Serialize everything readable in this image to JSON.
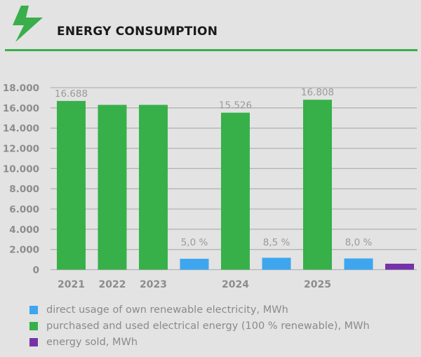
{
  "header": {
    "title": "ENERGY CONSUMPTION",
    "icon": "lightning-bolt-icon"
  },
  "colors": {
    "blue": "#3ea6ee",
    "green": "#37b04a",
    "purple": "#7433a8",
    "accent": "#3aae4a"
  },
  "chart_data": {
    "type": "bar",
    "title": "ENERGY CONSUMPTION",
    "xlabel": "",
    "ylabel": "",
    "ylim": [
      0,
      18000
    ],
    "yticks": [
      0,
      2000,
      4000,
      6000,
      8000,
      10000,
      12000,
      14000,
      16000,
      18000
    ],
    "ytick_labels": [
      "0",
      "2.000",
      "4.000",
      "6.000",
      "8.000",
      "10.000",
      "12.000",
      "14.000",
      "16.000",
      "18.000"
    ],
    "grid": true,
    "legend_position": "bottom",
    "bars": [
      {
        "category": "2021",
        "series": "purchased",
        "value": 16688,
        "label": "16.688"
      },
      {
        "category": "2022",
        "series": "purchased",
        "value": 16300,
        "label": ""
      },
      {
        "category": "2023",
        "series": "purchased",
        "value": 16300,
        "label": ""
      },
      {
        "category": "",
        "series": "direct",
        "value": 1080,
        "label": "5,0 %"
      },
      {
        "category": "2024",
        "series": "purchased",
        "value": 15526,
        "label": "15.526"
      },
      {
        "category": "",
        "series": "direct",
        "value": 1180,
        "label": "8,5 %"
      },
      {
        "category": "2025",
        "series": "purchased",
        "value": 16808,
        "label": "16.808"
      },
      {
        "category": "",
        "series": "direct",
        "value": 1110,
        "label": "8,0 %"
      },
      {
        "category": "",
        "series": "sold",
        "value": 590,
        "label": ""
      }
    ],
    "series": [
      {
        "key": "direct",
        "name": "direct usage of own renewable electricity, MWh",
        "color": "#3ea6ee"
      },
      {
        "key": "purchased",
        "name": "purchased and used electrical energy (100 % renewable), MWh",
        "color": "#37b04a"
      },
      {
        "key": "sold",
        "name": "energy sold, MWh",
        "color": "#7433a8"
      }
    ]
  }
}
